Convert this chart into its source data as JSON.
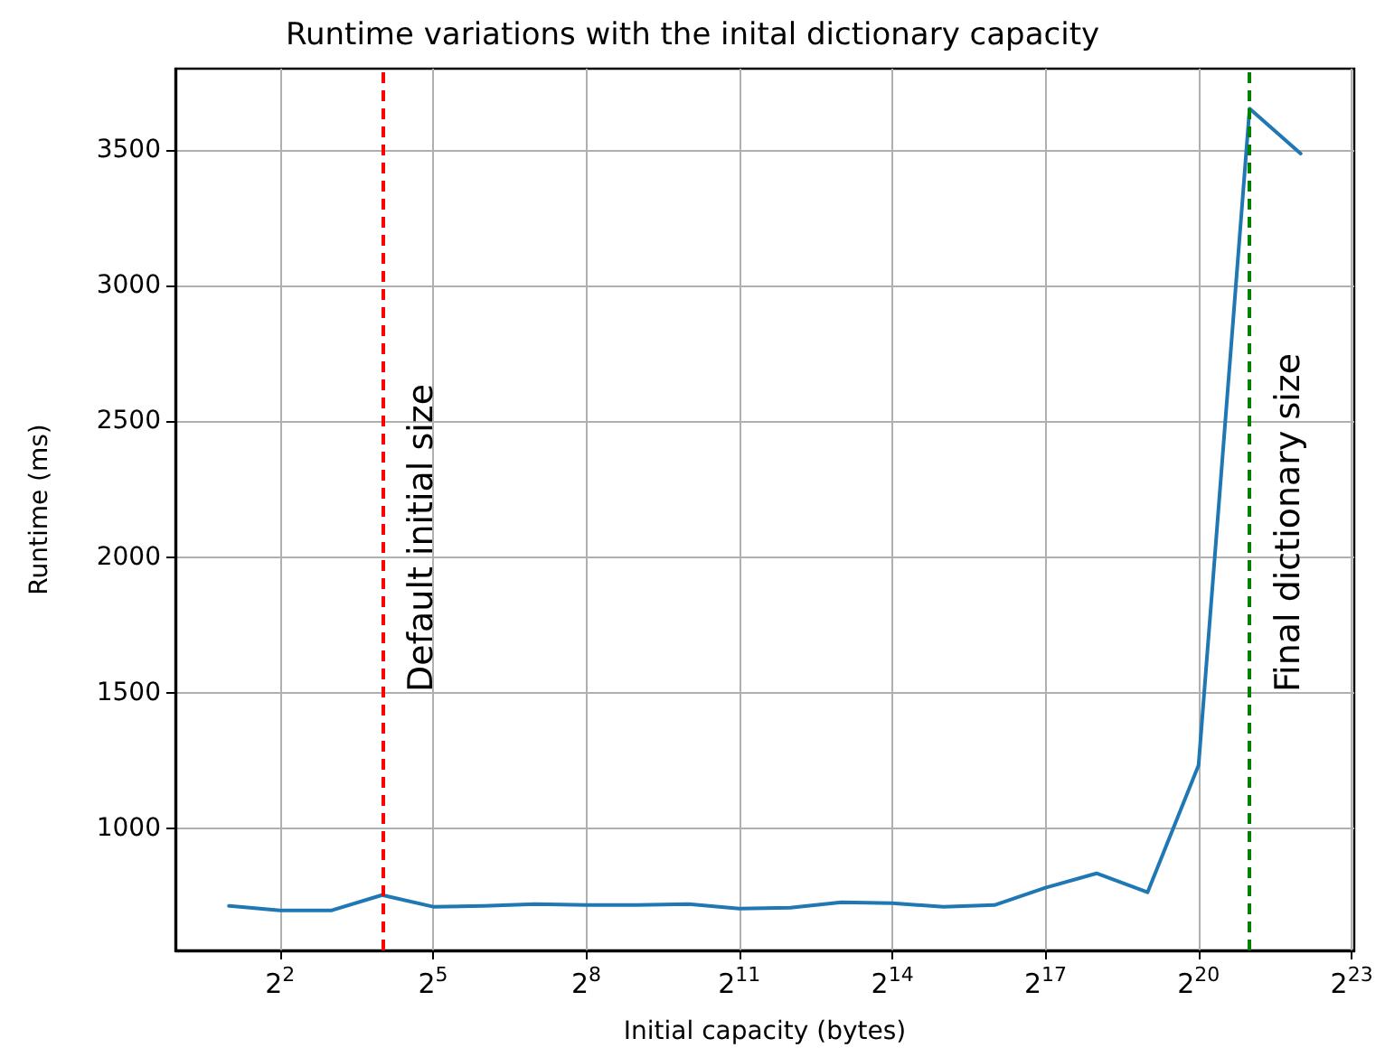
{
  "chart_data": {
    "type": "line",
    "title": "Runtime variations with the inital dictionary capacity",
    "xlabel": "Initial capacity (bytes)",
    "ylabel": "Runtime (ms)",
    "x": [
      2,
      4,
      8,
      16,
      32,
      64,
      128,
      256,
      512,
      1024,
      2048,
      4096,
      8192,
      16384,
      32768,
      65536,
      131072,
      262144,
      524288,
      1048576,
      2097152,
      4194304
    ],
    "series": [
      {
        "color": "#1f77b4",
        "values": [
          714,
          697,
          697,
          754,
          711,
          714,
          721,
          717,
          717,
          721,
          704,
          707,
          727,
          724,
          711,
          717,
          781,
          834,
          764,
          1233,
          3653,
          3487
        ]
      }
    ],
    "log": "x",
    "xlim": [
      0.966,
      8688000
    ],
    "xticks": [
      {
        "value": 4,
        "label": "2$^{2}$"
      },
      {
        "value": 32,
        "label": "2$^{5}$"
      },
      {
        "value": 256,
        "label": "2$^{8}$"
      },
      {
        "value": 2048,
        "label": "2$^{11}$"
      },
      {
        "value": 16384,
        "label": "2$^{14}$"
      },
      {
        "value": 131072,
        "label": "2$^{17}$"
      },
      {
        "value": 1048576,
        "label": "2$^{20}$"
      },
      {
        "value": 8388608,
        "label": "2$^{23}$"
      }
    ],
    "ylim": [
      550,
      3800
    ],
    "yticks": [
      1000,
      1500,
      2000,
      2500,
      3000,
      3500
    ],
    "ref_lines": [
      {
        "axis": "x",
        "value": 16,
        "label": "Default initial size",
        "color": "#ff0000",
        "line_style": "dashed"
      },
      {
        "axis": "x",
        "value": 2097152,
        "label": "Final dictionary size",
        "color": "#008000",
        "line_style": "dashed"
      }
    ],
    "grid": true,
    "marker": "none",
    "line_style": "solid"
  }
}
